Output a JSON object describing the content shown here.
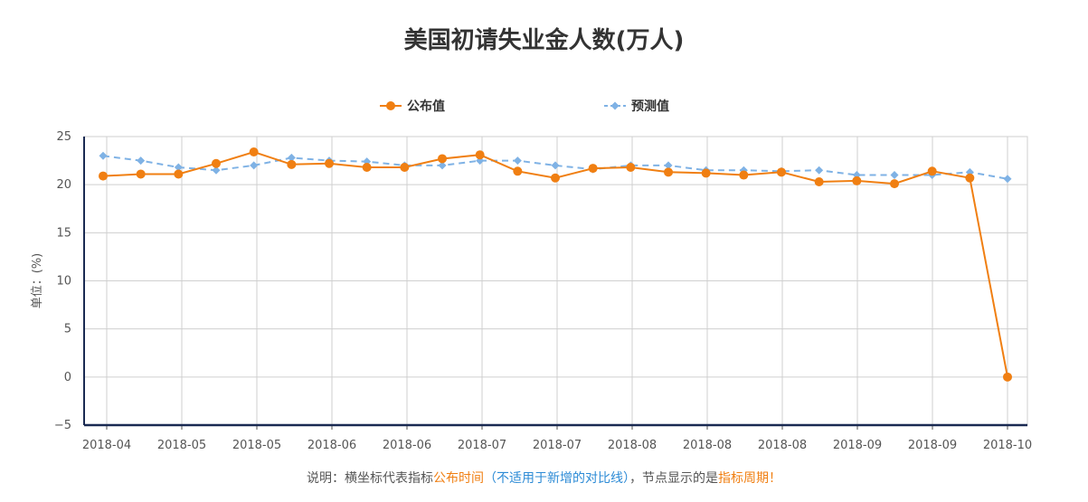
{
  "title": "美国初请失业金人数(万人)",
  "note": {
    "prefix": "说明：横坐标代表指标",
    "orange1": "公布时间",
    "paren_open": "（",
    "blue": "不适用于新增的对比线",
    "paren_close": "）",
    "middle": "，节点显示的是",
    "orange2": "指标周期！"
  },
  "colors": {
    "published": "#f07f12",
    "forecast": "#7fb2e5"
  },
  "chart_data": {
    "type": "line",
    "title": "美国初请失业金人数(万人)",
    "ylabel": "单位：(%)",
    "xlabel": "",
    "ylim": [
      -5,
      25
    ],
    "yticks": [
      -5,
      0,
      5,
      10,
      15,
      20,
      25
    ],
    "xtick_labels": [
      "2018-04",
      "2018-05",
      "2018-05",
      "2018-06",
      "2018-06",
      "2018-07",
      "2018-07",
      "2018-08",
      "2018-08",
      "2018-08",
      "2018-09",
      "2018-09",
      "2018-10"
    ],
    "grid": true,
    "legend": "top-center",
    "series": [
      {
        "name": "公布值",
        "color": "#f07f12",
        "marker": "circle",
        "style": "solid",
        "values": [
          20.9,
          21.1,
          21.1,
          22.2,
          23.4,
          22.1,
          22.2,
          21.8,
          21.8,
          22.7,
          23.1,
          21.4,
          20.7,
          21.7,
          21.8,
          21.3,
          21.2,
          21.0,
          21.3,
          20.3,
          20.4,
          20.1,
          21.4,
          20.7,
          0
        ]
      },
      {
        "name": "预测值",
        "color": "#7fb2e5",
        "marker": "diamond",
        "style": "dashed",
        "values": [
          23.0,
          22.5,
          21.8,
          21.5,
          22.0,
          22.8,
          22.5,
          22.4,
          22.0,
          22.0,
          22.5,
          22.5,
          22.0,
          21.6,
          22.0,
          22.0,
          21.5,
          21.5,
          21.4,
          21.5,
          21.0,
          21.0,
          21.0,
          21.3,
          20.6
        ]
      }
    ]
  }
}
